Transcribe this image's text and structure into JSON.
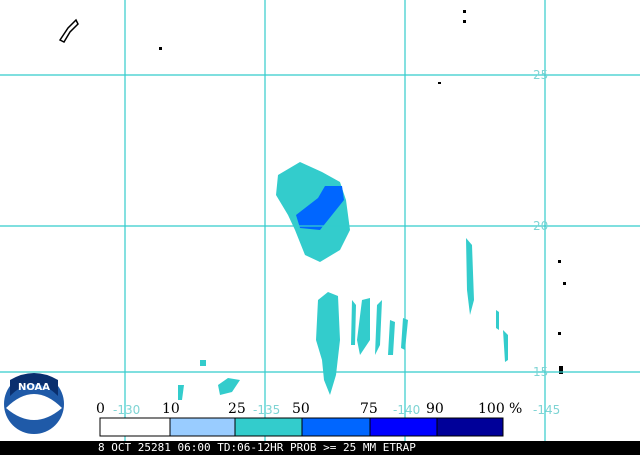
{
  "map": {
    "latitude_labels": [
      "25",
      "20",
      "15"
    ],
    "longitude_labels": [
      "-130",
      "-135",
      "-140",
      "-145"
    ]
  },
  "legend": {
    "labels": [
      "0",
      "10",
      "25",
      "50",
      "75",
      "90",
      "100"
    ],
    "unit": "%",
    "colors": [
      "#ffffff",
      "#99ccff",
      "#33cccc",
      "#0066ff",
      "#0000ff",
      "#000099"
    ]
  },
  "logo": "NOAA",
  "footer": "8 OCT 25281 06:00 TD:06-12HR PROB >= 25 MM ETRAP"
}
